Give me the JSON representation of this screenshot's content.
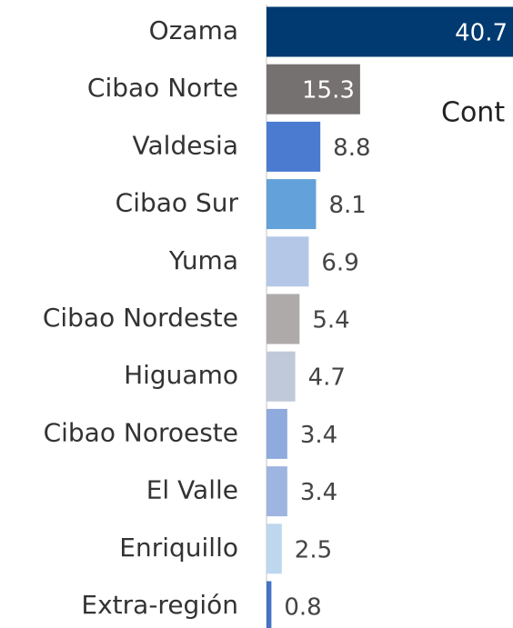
{
  "chart_data": {
    "type": "barh",
    "categories": [
      "Ozama",
      "Cibao Norte",
      "Valdesia",
      "Cibao Sur",
      "Yuma",
      "Cibao Nordeste",
      "Higuamo",
      "Cibao Noroeste",
      "El Valle",
      "Enriquillo",
      "Extra-región"
    ],
    "values": [
      40.7,
      15.3,
      8.8,
      8.1,
      6.9,
      5.4,
      4.7,
      3.4,
      3.4,
      2.5,
      0.8
    ],
    "colors": [
      "#003a70",
      "#767171",
      "#4a7bd0",
      "#62a1d9",
      "#b4c7e7",
      "#aeaaaa",
      "#bfc9d9",
      "#8faadc",
      "#9db5e0",
      "#bdd7ee",
      "#4472c4"
    ],
    "xlim": [
      0,
      40.3
    ],
    "annotations": [
      "Cont"
    ]
  }
}
